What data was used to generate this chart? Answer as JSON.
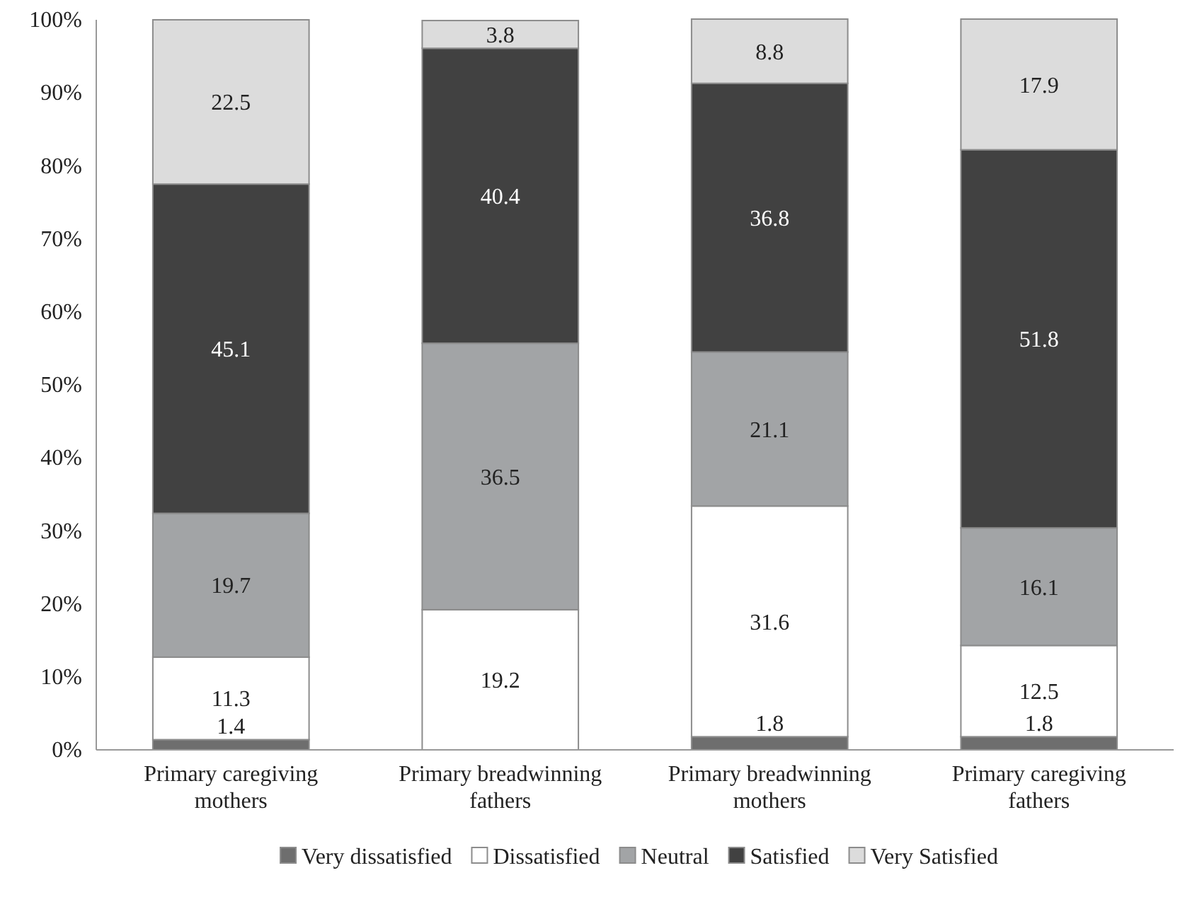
{
  "chart_data": {
    "type": "bar",
    "stacked": true,
    "categories": [
      "Primary caregiving mothers",
      "Primary breadwinning fathers",
      "Primary breadwinning mothers",
      "Primary caregiving fathers"
    ],
    "series": [
      {
        "name": "Very dissatisfied",
        "color": "#6e6e6e",
        "values": [
          1.4,
          null,
          1.8,
          1.8
        ]
      },
      {
        "name": "Dissatisfied",
        "color": "#ffffff",
        "values": [
          11.3,
          19.2,
          31.6,
          12.5
        ]
      },
      {
        "name": "Neutral",
        "color": "#a2a4a6",
        "values": [
          19.7,
          36.5,
          21.1,
          16.1
        ]
      },
      {
        "name": "Satisfied",
        "color": "#414141",
        "values": [
          45.1,
          40.4,
          36.8,
          51.8
        ]
      },
      {
        "name": "Very Satisfied",
        "color": "#dcdcdc",
        "values": [
          22.5,
          3.8,
          8.8,
          17.9
        ]
      }
    ],
    "ylim": [
      0,
      100
    ],
    "yticks": [
      {
        "value": 0,
        "label": "0%"
      },
      {
        "value": 10,
        "label": "10%"
      },
      {
        "value": 20,
        "label": "20%"
      },
      {
        "value": 30,
        "label": "30%"
      },
      {
        "value": 40,
        "label": "40%"
      },
      {
        "value": 50,
        "label": "50%"
      },
      {
        "value": 60,
        "label": "60%"
      },
      {
        "value": 70,
        "label": "70%"
      },
      {
        "value": 80,
        "label": "80%"
      },
      {
        "value": 90,
        "label": "90%"
      },
      {
        "value": 100,
        "label": "100%"
      }
    ],
    "data_labels": true,
    "legend": "bottom",
    "grid": false
  }
}
